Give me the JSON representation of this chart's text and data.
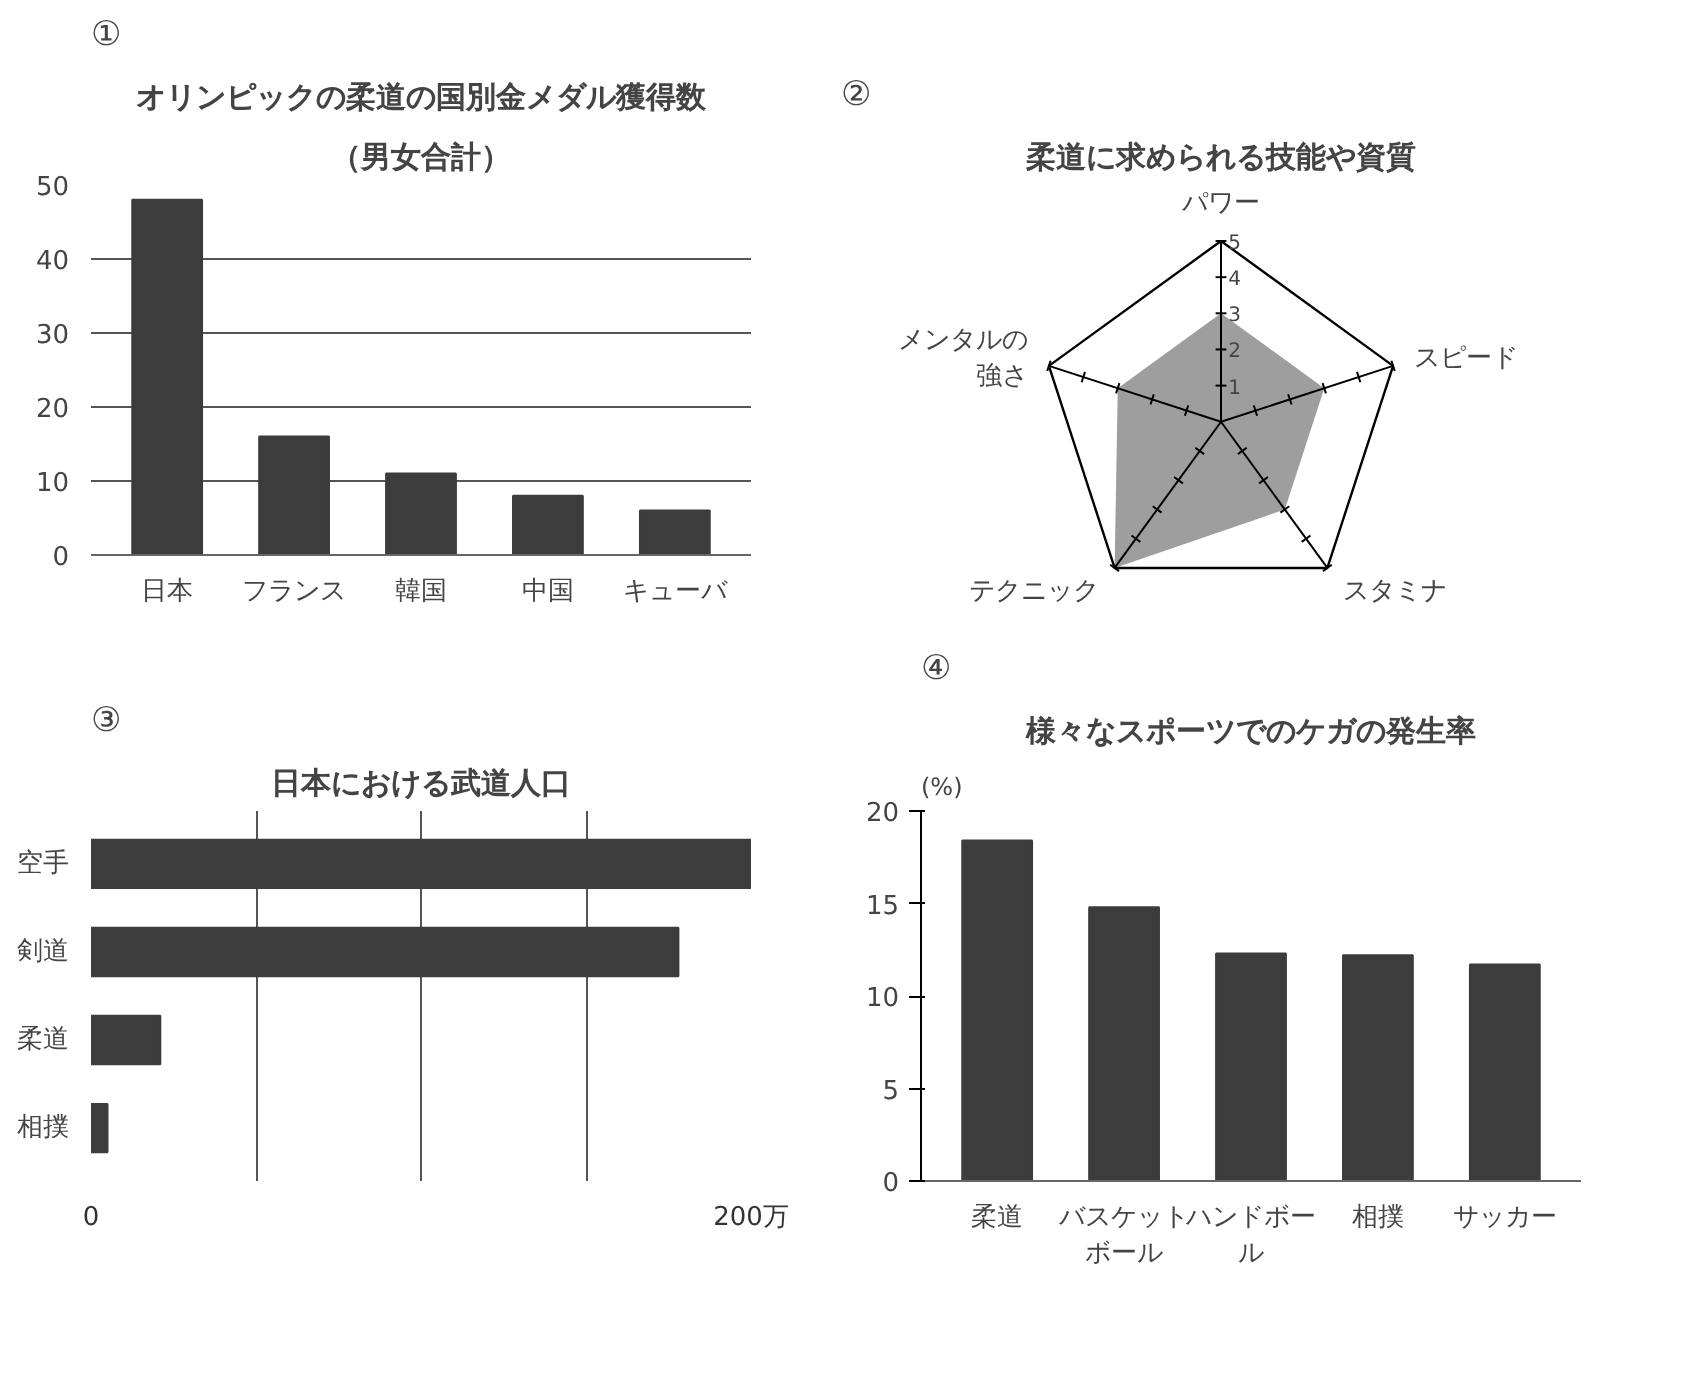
{
  "chart_data": [
    {
      "type": "bar",
      "title": "オリンピックの柔道の国別金メダル獲得数",
      "subtitle": "（男女合計）",
      "annotations": [
        "①"
      ],
      "categories": [
        "日本",
        "フランス",
        "韓国",
        "中国",
        "キューバ"
      ],
      "values": [
        48,
        16,
        11,
        8,
        6
      ],
      "color": "#3c3c3c",
      "ylim": [
        0,
        50
      ],
      "yticks": [
        0,
        10,
        20,
        30,
        40,
        50
      ],
      "grid": "y"
    },
    {
      "type": "radar",
      "title": "柔道に求められる技能や資質",
      "annotations": [
        "②"
      ],
      "categories": [
        "パワー",
        "スピード",
        "スタミナ",
        "テクニック",
        "メンタルの強さ"
      ],
      "series": [
        {
          "color": "#9e9e9e",
          "values": [
            3,
            3,
            3,
            5,
            3
          ]
        }
      ],
      "ylim": [
        0,
        5
      ],
      "yticks": [
        1,
        2,
        3,
        4,
        5
      ]
    },
    {
      "type": "bar",
      "orientation": "horizontal",
      "title": "日本における武道人口",
      "annotations": [
        "③"
      ],
      "categories": [
        "空手",
        "剣道",
        "柔道",
        "相撲"
      ],
      "values": [
        200,
        178,
        21,
        5
      ],
      "color": "#3c3c3c",
      "xlim": [
        0,
        200
      ],
      "xticks": [
        {
          "value": 0,
          "label": "0"
        },
        {
          "value": 50,
          "label": null
        },
        {
          "value": 100,
          "label": null
        },
        {
          "value": 150,
          "label": null
        },
        {
          "value": 200,
          "label": "200万"
        }
      ],
      "grid": "x"
    },
    {
      "type": "bar",
      "title": "様々なスポーツでのケガの発生率",
      "ylabel": "(%)",
      "annotations": [
        "④"
      ],
      "categories": [
        "柔道",
        "バスケットボール",
        "ハンドボール",
        "相撲",
        "サッカー"
      ],
      "values": [
        18.4,
        14.8,
        12.3,
        12.2,
        11.7
      ],
      "color": "#3c3c3c",
      "ylim": [
        0,
        20
      ],
      "yticks": [
        0,
        5,
        10,
        15,
        20
      ]
    }
  ]
}
